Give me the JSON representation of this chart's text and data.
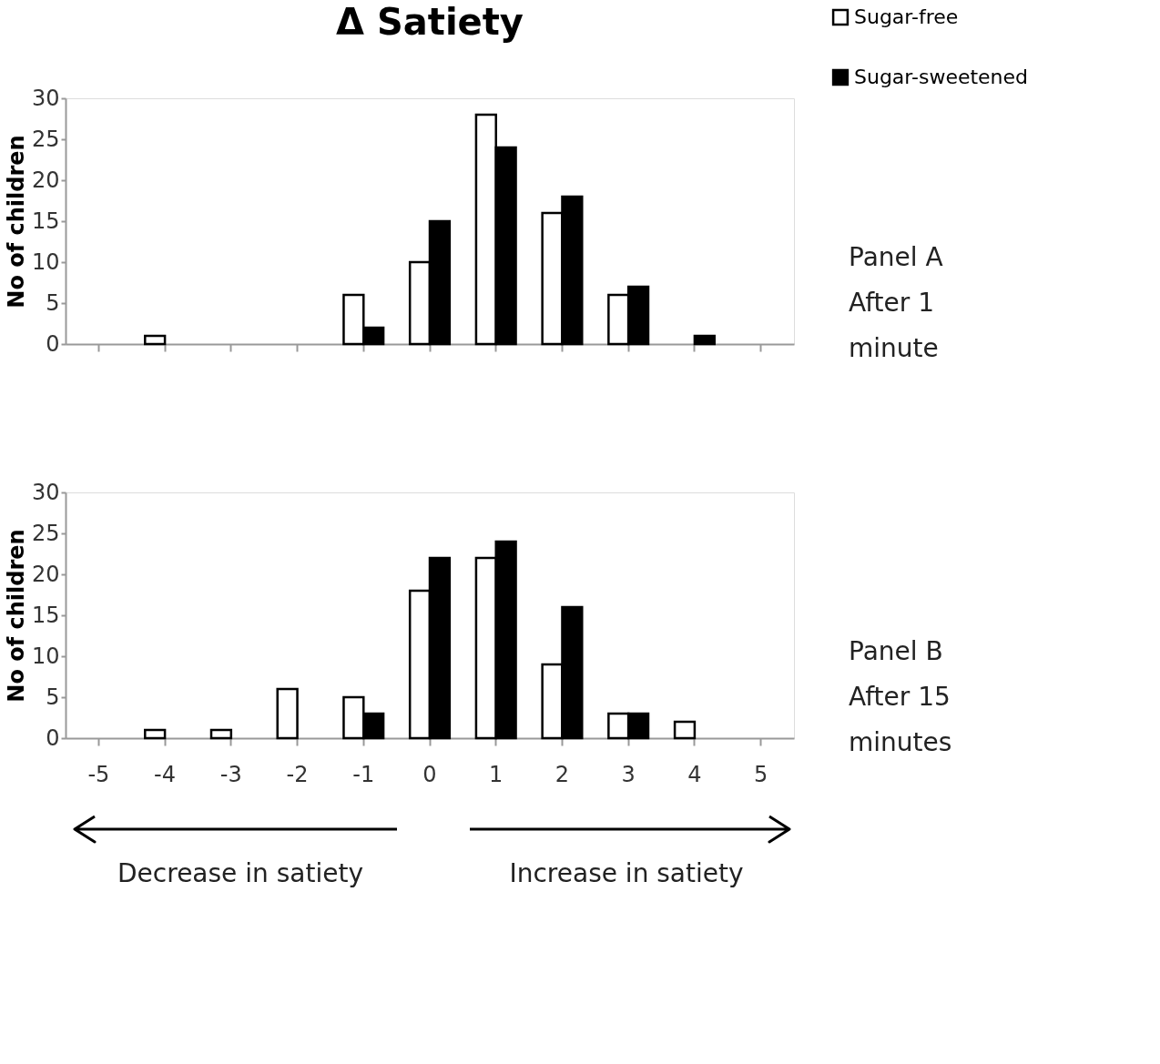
{
  "chart_data": [
    {
      "type": "bar",
      "title": "Δ Satiety",
      "ylabel": "No of children",
      "categories": [
        "-5",
        "-4",
        "-3",
        "-2",
        "-1",
        "0",
        "1",
        "2",
        "3",
        "4",
        "5"
      ],
      "series": [
        {
          "name": "Sugar-free",
          "color": "#ffffff",
          "values": [
            null,
            1,
            null,
            null,
            6,
            10,
            28,
            16,
            6,
            null,
            null
          ]
        },
        {
          "name": "Sugar-sweetened",
          "color": "#000000",
          "values": [
            null,
            null,
            null,
            null,
            2,
            15,
            24,
            18,
            7,
            1,
            null
          ]
        }
      ],
      "ylim": [
        0,
        30
      ],
      "yticks": [
        0,
        5,
        10,
        15,
        20,
        25,
        30
      ],
      "grid": false,
      "legend": "top right",
      "tick_labels": "y",
      "annotations": [
        "Panel A\nAfter 1\nminute"
      ]
    },
    {
      "type": "bar",
      "ylabel": "No of children",
      "categories": [
        "-5",
        "-4",
        "-3",
        "-2",
        "-1",
        "0",
        "1",
        "2",
        "3",
        "4",
        "5"
      ],
      "series": [
        {
          "name": "Sugar-free",
          "color": "#ffffff",
          "values": [
            null,
            1,
            1,
            6,
            5,
            18,
            22,
            9,
            3,
            2,
            null
          ]
        },
        {
          "name": "Sugar-sweetened",
          "color": "#000000",
          "values": [
            null,
            null,
            null,
            null,
            3,
            22,
            24,
            16,
            3,
            null,
            null
          ]
        }
      ],
      "ylim": [
        0,
        30
      ],
      "yticks": [
        0,
        5,
        10,
        15,
        20,
        25,
        30
      ],
      "grid": false,
      "annotations": [
        "Panel B\nAfter 15\nminutes",
        "Decrease in satiety",
        "Increase in satiety"
      ]
    }
  ]
}
